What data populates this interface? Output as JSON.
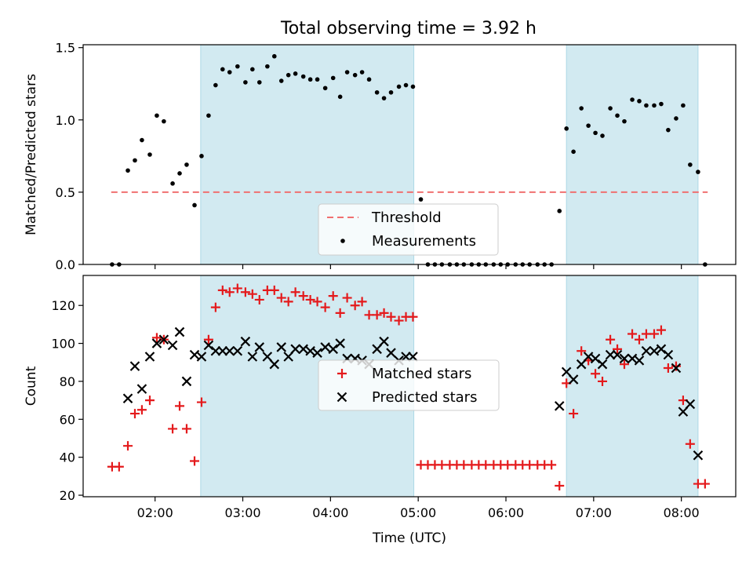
{
  "figure": {
    "title": "Total observing time = 3.92 h"
  },
  "chart_data": [
    {
      "type": "scatter",
      "title": "Total observing time = 3.92 h",
      "xlabel": "",
      "ylabel": "Matched/Predicted stars",
      "xlim": [
        1.18,
        8.62
      ],
      "ylim": [
        0,
        1.52
      ],
      "yticks": [
        "0.0",
        "0.5",
        "1.0",
        "1.5"
      ],
      "shaded_intervals": [
        [
          2.52,
          4.95
        ],
        [
          6.69,
          8.19
        ]
      ],
      "threshold": {
        "name": "Threshold",
        "value": 0.5,
        "x_range": [
          1.5,
          8.3
        ],
        "color": "#f07070"
      },
      "legend": {
        "location": "lower-center",
        "entries": [
          "Threshold",
          "Measurements"
        ]
      },
      "series": [
        {
          "name": "Measurements",
          "marker": "dot",
          "color": "#000000",
          "points": [
            [
              1.51,
              0.0
            ],
            [
              1.59,
              0.0
            ],
            [
              1.69,
              0.65
            ],
            [
              1.77,
              0.72
            ],
            [
              1.85,
              0.86
            ],
            [
              1.94,
              0.76
            ],
            [
              2.02,
              1.03
            ],
            [
              2.1,
              0.99
            ],
            [
              2.2,
              0.56
            ],
            [
              2.28,
              0.63
            ],
            [
              2.36,
              0.69
            ],
            [
              2.45,
              0.41
            ],
            [
              2.53,
              0.75
            ],
            [
              2.61,
              1.03
            ],
            [
              2.69,
              1.24
            ],
            [
              2.77,
              1.35
            ],
            [
              2.85,
              1.33
            ],
            [
              2.94,
              1.37
            ],
            [
              3.03,
              1.26
            ],
            [
              3.11,
              1.35
            ],
            [
              3.19,
              1.26
            ],
            [
              3.28,
              1.37
            ],
            [
              3.36,
              1.44
            ],
            [
              3.44,
              1.27
            ],
            [
              3.52,
              1.31
            ],
            [
              3.6,
              1.32
            ],
            [
              3.69,
              1.3
            ],
            [
              3.77,
              1.28
            ],
            [
              3.85,
              1.28
            ],
            [
              3.94,
              1.22
            ],
            [
              4.03,
              1.29
            ],
            [
              4.11,
              1.16
            ],
            [
              4.19,
              1.33
            ],
            [
              4.28,
              1.31
            ],
            [
              4.36,
              1.33
            ],
            [
              4.44,
              1.28
            ],
            [
              4.53,
              1.19
            ],
            [
              4.61,
              1.15
            ],
            [
              4.69,
              1.19
            ],
            [
              4.78,
              1.23
            ],
            [
              4.86,
              1.24
            ],
            [
              4.94,
              1.23
            ],
            [
              5.03,
              0.45
            ],
            [
              5.11,
              0.0
            ],
            [
              5.19,
              0.0
            ],
            [
              5.27,
              0.0
            ],
            [
              5.36,
              0.0
            ],
            [
              5.44,
              0.0
            ],
            [
              5.52,
              0.0
            ],
            [
              5.61,
              0.0
            ],
            [
              5.69,
              0.0
            ],
            [
              5.77,
              0.0
            ],
            [
              5.86,
              0.0
            ],
            [
              5.94,
              0.0
            ],
            [
              6.02,
              0.0
            ],
            [
              6.11,
              0.0
            ],
            [
              6.19,
              0.0
            ],
            [
              6.27,
              0.0
            ],
            [
              6.36,
              0.0
            ],
            [
              6.44,
              0.0
            ],
            [
              6.52,
              0.0
            ],
            [
              6.61,
              0.37
            ],
            [
              6.69,
              0.94
            ],
            [
              6.77,
              0.78
            ],
            [
              6.86,
              1.08
            ],
            [
              6.94,
              0.96
            ],
            [
              7.02,
              0.91
            ],
            [
              7.1,
              0.89
            ],
            [
              7.19,
              1.08
            ],
            [
              7.27,
              1.03
            ],
            [
              7.35,
              0.99
            ],
            [
              7.44,
              1.14
            ],
            [
              7.52,
              1.13
            ],
            [
              7.6,
              1.1
            ],
            [
              7.69,
              1.1
            ],
            [
              7.77,
              1.11
            ],
            [
              7.85,
              0.93
            ],
            [
              7.94,
              1.01
            ],
            [
              8.02,
              1.1
            ],
            [
              8.1,
              0.69
            ],
            [
              8.19,
              0.64
            ],
            [
              8.27,
              0.0
            ]
          ]
        }
      ]
    },
    {
      "type": "scatter",
      "xlabel": "Time (UTC)",
      "ylabel": "Count",
      "xlim": [
        1.18,
        8.62
      ],
      "ylim": [
        19.2,
        135.8
      ],
      "xticks": [
        "02:00",
        "03:00",
        "04:00",
        "05:00",
        "06:00",
        "07:00",
        "08:00"
      ],
      "xtick_values": [
        2,
        3,
        4,
        5,
        6,
        7,
        8
      ],
      "yticks": [
        "20",
        "40",
        "60",
        "80",
        "100",
        "120"
      ],
      "shaded_intervals": [
        [
          2.52,
          4.95
        ],
        [
          6.69,
          8.19
        ]
      ],
      "legend": {
        "location": "center",
        "entries": [
          "Matched stars",
          "Predicted stars"
        ]
      },
      "series": [
        {
          "name": "Matched stars",
          "marker": "plus",
          "color": "#e41a1c",
          "points": [
            [
              1.51,
              35
            ],
            [
              1.59,
              35
            ],
            [
              1.69,
              46
            ],
            [
              1.77,
              63
            ],
            [
              1.85,
              65
            ],
            [
              1.94,
              70
            ],
            [
              2.02,
              103
            ],
            [
              2.1,
              102
            ],
            [
              2.2,
              55
            ],
            [
              2.28,
              67
            ],
            [
              2.36,
              55
            ],
            [
              2.45,
              38
            ],
            [
              2.53,
              69
            ],
            [
              2.61,
              102
            ],
            [
              2.69,
              119
            ],
            [
              2.77,
              128
            ],
            [
              2.85,
              127
            ],
            [
              2.94,
              129
            ],
            [
              3.03,
              127
            ],
            [
              3.11,
              126
            ],
            [
              3.19,
              123
            ],
            [
              3.28,
              128
            ],
            [
              3.36,
              128
            ],
            [
              3.44,
              124
            ],
            [
              3.52,
              122
            ],
            [
              3.6,
              127
            ],
            [
              3.69,
              125
            ],
            [
              3.77,
              123
            ],
            [
              3.85,
              122
            ],
            [
              3.94,
              119
            ],
            [
              4.03,
              125
            ],
            [
              4.11,
              116
            ],
            [
              4.19,
              124
            ],
            [
              4.28,
              120
            ],
            [
              4.36,
              122
            ],
            [
              4.44,
              115
            ],
            [
              4.53,
              115
            ],
            [
              4.61,
              116
            ],
            [
              4.69,
              114
            ],
            [
              4.78,
              112
            ],
            [
              4.86,
              114
            ],
            [
              4.94,
              114
            ],
            [
              5.03,
              36
            ],
            [
              5.11,
              36
            ],
            [
              5.19,
              36
            ],
            [
              5.27,
              36
            ],
            [
              5.36,
              36
            ],
            [
              5.44,
              36
            ],
            [
              5.52,
              36
            ],
            [
              5.61,
              36
            ],
            [
              5.69,
              36
            ],
            [
              5.77,
              36
            ],
            [
              5.86,
              36
            ],
            [
              5.94,
              36
            ],
            [
              6.02,
              36
            ],
            [
              6.11,
              36
            ],
            [
              6.19,
              36
            ],
            [
              6.27,
              36
            ],
            [
              6.36,
              36
            ],
            [
              6.44,
              36
            ],
            [
              6.52,
              36
            ],
            [
              6.61,
              25
            ],
            [
              6.69,
              79
            ],
            [
              6.77,
              63
            ],
            [
              6.86,
              96
            ],
            [
              6.94,
              91
            ],
            [
              7.02,
              84
            ],
            [
              7.1,
              80
            ],
            [
              7.19,
              102
            ],
            [
              7.27,
              97
            ],
            [
              7.35,
              89
            ],
            [
              7.44,
              105
            ],
            [
              7.52,
              102
            ],
            [
              7.6,
              105
            ],
            [
              7.69,
              105
            ],
            [
              7.77,
              107
            ],
            [
              7.85,
              87
            ],
            [
              7.94,
              88
            ],
            [
              8.02,
              70
            ],
            [
              8.1,
              47
            ],
            [
              8.19,
              26
            ],
            [
              8.27,
              26
            ]
          ]
        },
        {
          "name": "Predicted stars",
          "marker": "x",
          "color": "#000000",
          "points": [
            [
              1.69,
              71
            ],
            [
              1.77,
              88
            ],
            [
              1.85,
              76
            ],
            [
              1.94,
              93
            ],
            [
              2.02,
              100
            ],
            [
              2.1,
              102
            ],
            [
              2.2,
              99
            ],
            [
              2.28,
              106
            ],
            [
              2.36,
              80
            ],
            [
              2.45,
              94
            ],
            [
              2.53,
              93
            ],
            [
              2.61,
              99
            ],
            [
              2.69,
              96
            ],
            [
              2.77,
              96
            ],
            [
              2.85,
              96
            ],
            [
              2.94,
              96
            ],
            [
              3.03,
              101
            ],
            [
              3.11,
              93
            ],
            [
              3.19,
              98
            ],
            [
              3.28,
              93
            ],
            [
              3.36,
              89
            ],
            [
              3.44,
              98
            ],
            [
              3.52,
              93
            ],
            [
              3.6,
              97
            ],
            [
              3.69,
              97
            ],
            [
              3.77,
              96
            ],
            [
              3.85,
              95
            ],
            [
              3.94,
              98
            ],
            [
              4.03,
              97
            ],
            [
              4.11,
              100
            ],
            [
              4.19,
              92
            ],
            [
              4.28,
              92
            ],
            [
              4.36,
              91
            ],
            [
              4.44,
              89
            ],
            [
              4.53,
              97
            ],
            [
              4.61,
              101
            ],
            [
              4.69,
              95
            ],
            [
              4.78,
              91
            ],
            [
              4.86,
              93
            ],
            [
              4.94,
              93
            ],
            [
              6.61,
              67
            ],
            [
              6.69,
              85
            ],
            [
              6.77,
              81
            ],
            [
              6.86,
              89
            ],
            [
              6.94,
              93
            ],
            [
              7.02,
              92
            ],
            [
              7.1,
              89
            ],
            [
              7.19,
              94
            ],
            [
              7.27,
              94
            ],
            [
              7.35,
              92
            ],
            [
              7.44,
              92
            ],
            [
              7.52,
              91
            ],
            [
              7.6,
              96
            ],
            [
              7.69,
              96
            ],
            [
              7.77,
              97
            ],
            [
              7.85,
              94
            ],
            [
              7.94,
              87
            ],
            [
              8.02,
              64
            ],
            [
              8.1,
              68
            ],
            [
              8.19,
              41
            ]
          ]
        }
      ]
    }
  ],
  "colors": {
    "shade": "#add8e6",
    "axes": "#000000"
  }
}
